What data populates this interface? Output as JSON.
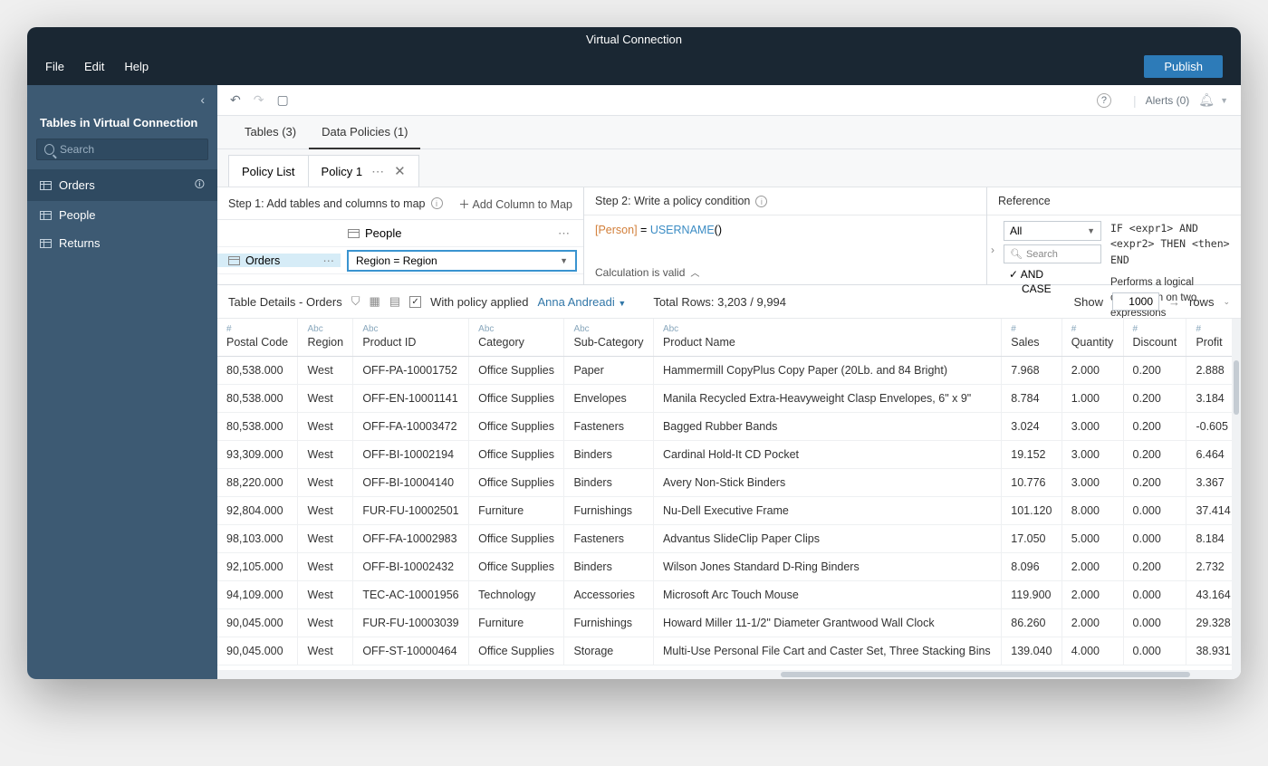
{
  "window": {
    "title": "Virtual Connection"
  },
  "menubar": {
    "items": [
      "File",
      "Edit",
      "Help"
    ],
    "publish": "Publish"
  },
  "toolbar": {
    "alerts": "Alerts (0)"
  },
  "sidebar": {
    "title": "Tables in Virtual Connection",
    "search_placeholder": "Search",
    "tables": [
      {
        "name": "Orders",
        "active": true,
        "shield": true
      },
      {
        "name": "People",
        "active": false,
        "shield": false
      },
      {
        "name": "Returns",
        "active": false,
        "shield": false
      }
    ]
  },
  "tabs": {
    "main": [
      {
        "label": "Tables (3)",
        "active": false
      },
      {
        "label": "Data Policies (1)",
        "active": true
      }
    ],
    "sub": [
      {
        "label": "Policy List",
        "closable": false
      },
      {
        "label": "Policy 1",
        "closable": true,
        "dots": true
      }
    ]
  },
  "policy": {
    "step1": {
      "title": "Step 1: Add tables and columns to map",
      "add_col": "Add Column to Map",
      "col_table": "People",
      "rows": [
        {
          "table": "Orders",
          "mapping": "Region = Region",
          "selected": true
        }
      ]
    },
    "step2": {
      "title": "Step 2: Write a policy condition",
      "expr_field": "[Person]",
      "expr_eq": " = ",
      "expr_fn": "USERNAME",
      "expr_paren": "()",
      "valid": "Calculation is valid"
    },
    "reference": {
      "title": "Reference",
      "filter": "All",
      "search_placeholder": "Search",
      "items": [
        "AND",
        "CASE"
      ],
      "selected_check": "AND",
      "syntax": "IF <expr1> AND <expr2> THEN <then> END",
      "desc": "Performs a logical conjunction on two expressions"
    }
  },
  "details": {
    "title": "Table Details - Orders",
    "with_policy": "With policy applied",
    "user": "Anna Andreadi",
    "total_rows": "Total Rows: 3,203 / 9,994",
    "show_label": "Show",
    "show_value": "1000",
    "rows_label": "rows"
  },
  "columns": [
    {
      "type": "#",
      "name": "Postal Code",
      "key": "postal"
    },
    {
      "type": "Abc",
      "name": "Region",
      "key": "region"
    },
    {
      "type": "Abc",
      "name": "Product ID",
      "key": "pid"
    },
    {
      "type": "Abc",
      "name": "Category",
      "key": "cat"
    },
    {
      "type": "Abc",
      "name": "Sub-Category",
      "key": "sub"
    },
    {
      "type": "Abc",
      "name": "Product Name",
      "key": "pname"
    },
    {
      "type": "#",
      "name": "Sales",
      "key": "sales"
    },
    {
      "type": "#",
      "name": "Quantity",
      "key": "qty"
    },
    {
      "type": "#",
      "name": "Discount",
      "key": "disc"
    },
    {
      "type": "#",
      "name": "Profit",
      "key": "profit"
    }
  ],
  "rows": [
    {
      "postal": "80,538.000",
      "region": "West",
      "pid": "OFF-PA-10001752",
      "cat": "Office Supplies",
      "sub": "Paper",
      "pname": "Hammermill CopyPlus Copy Paper (20Lb. and 84 Bright)",
      "sales": "7.968",
      "qty": "2.000",
      "disc": "0.200",
      "profit": "2.888"
    },
    {
      "postal": "80,538.000",
      "region": "West",
      "pid": "OFF-EN-10001141",
      "cat": "Office Supplies",
      "sub": "Envelopes",
      "pname": "Manila Recycled Extra-Heavyweight Clasp Envelopes, 6\" x 9\"",
      "sales": "8.784",
      "qty": "1.000",
      "disc": "0.200",
      "profit": "3.184"
    },
    {
      "postal": "80,538.000",
      "region": "West",
      "pid": "OFF-FA-10003472",
      "cat": "Office Supplies",
      "sub": "Fasteners",
      "pname": "Bagged Rubber Bands",
      "sales": "3.024",
      "qty": "3.000",
      "disc": "0.200",
      "profit": "-0.605"
    },
    {
      "postal": "93,309.000",
      "region": "West",
      "pid": "OFF-BI-10002194",
      "cat": "Office Supplies",
      "sub": "Binders",
      "pname": "Cardinal Hold-It CD Pocket",
      "sales": "19.152",
      "qty": "3.000",
      "disc": "0.200",
      "profit": "6.464"
    },
    {
      "postal": "88,220.000",
      "region": "West",
      "pid": "OFF-BI-10004140",
      "cat": "Office Supplies",
      "sub": "Binders",
      "pname": "Avery Non-Stick Binders",
      "sales": "10.776",
      "qty": "3.000",
      "disc": "0.200",
      "profit": "3.367"
    },
    {
      "postal": "92,804.000",
      "region": "West",
      "pid": "FUR-FU-10002501",
      "cat": "Furniture",
      "sub": "Furnishings",
      "pname": "Nu-Dell Executive Frame",
      "sales": "101.120",
      "qty": "8.000",
      "disc": "0.000",
      "profit": "37.414"
    },
    {
      "postal": "98,103.000",
      "region": "West",
      "pid": "OFF-FA-10002983",
      "cat": "Office Supplies",
      "sub": "Fasteners",
      "pname": "Advantus SlideClip Paper Clips",
      "sales": "17.050",
      "qty": "5.000",
      "disc": "0.000",
      "profit": "8.184"
    },
    {
      "postal": "92,105.000",
      "region": "West",
      "pid": "OFF-BI-10002432",
      "cat": "Office Supplies",
      "sub": "Binders",
      "pname": "Wilson Jones Standard D-Ring Binders",
      "sales": "8.096",
      "qty": "2.000",
      "disc": "0.200",
      "profit": "2.732"
    },
    {
      "postal": "94,109.000",
      "region": "West",
      "pid": "TEC-AC-10001956",
      "cat": "Technology",
      "sub": "Accessories",
      "pname": "Microsoft Arc Touch Mouse",
      "sales": "119.900",
      "qty": "2.000",
      "disc": "0.000",
      "profit": "43.164"
    },
    {
      "postal": "90,045.000",
      "region": "West",
      "pid": "FUR-FU-10003039",
      "cat": "Furniture",
      "sub": "Furnishings",
      "pname": "Howard Miller 11-1/2\" Diameter Grantwood Wall Clock",
      "sales": "86.260",
      "qty": "2.000",
      "disc": "0.000",
      "profit": "29.328"
    },
    {
      "postal": "90,045.000",
      "region": "West",
      "pid": "OFF-ST-10000464",
      "cat": "Office Supplies",
      "sub": "Storage",
      "pname": "Multi-Use Personal File Cart and Caster Set, Three Stacking Bins",
      "sales": "139.040",
      "qty": "4.000",
      "disc": "0.000",
      "profit": "38.931"
    }
  ],
  "colors": {
    "titlebar": "#1a2733",
    "sidebar": "#3d5a73",
    "sidebar_active": "#2f4a61",
    "publish": "#2d7bb8",
    "link": "#3277a8",
    "field_token": "#d27f3a",
    "fn_token": "#3b8cc4",
    "border": "#d9dde2",
    "type_hint": "#8aa8bd"
  }
}
